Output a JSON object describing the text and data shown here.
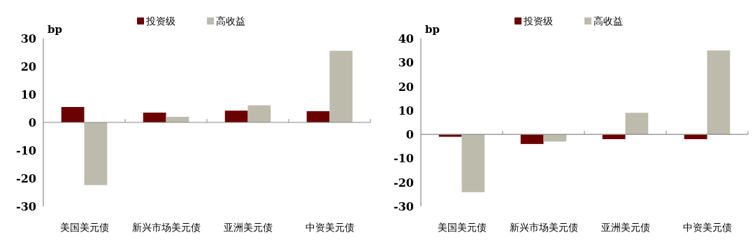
{
  "chart_data": [
    {
      "type": "bar",
      "ylabel": "bp",
      "categories": [
        "美国美元债",
        "新兴市场美元债",
        "亚洲美元债",
        "中资美元债"
      ],
      "series": [
        {
          "name": "投资级",
          "color": "#6b0000",
          "values": [
            5.5,
            3.5,
            4.2,
            4.0
          ]
        },
        {
          "name": "高收益",
          "color": "#bdbbab",
          "values": [
            -22.4,
            2.0,
            6.1,
            25.6
          ]
        }
      ],
      "ylim": [
        -30,
        30
      ],
      "yticks": [
        -30,
        -20,
        -10,
        0,
        10,
        20,
        30
      ],
      "legend": "top"
    },
    {
      "type": "bar",
      "ylabel": "bp",
      "categories": [
        "美国美元债",
        "新兴市场美元债",
        "亚洲美元债",
        "中资美元债"
      ],
      "series": [
        {
          "name": "投资级",
          "color": "#6b0000",
          "values": [
            -1.0,
            -4.0,
            -2.0,
            -2.0
          ]
        },
        {
          "name": "高收益",
          "color": "#bdbbab",
          "values": [
            -24.1,
            -3.0,
            9.0,
            35.0
          ]
        }
      ],
      "ylim": [
        -30,
        40
      ],
      "yticks": [
        -30,
        -20,
        -10,
        0,
        10,
        20,
        30,
        40
      ],
      "legend": "top"
    }
  ]
}
